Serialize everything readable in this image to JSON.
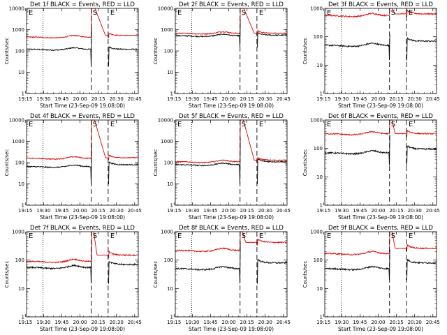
{
  "chart_data": [
    {
      "type": "line",
      "title": "Det 1f BLACK = Events, RED = LLD",
      "xlabel": "Start Time (23-Sep-09 19:08:00)",
      "ylabel": "Counts/sec",
      "x_ticks": [
        "19:15",
        "19:30",
        "19:45",
        "20:00",
        "20:15",
        "20:30",
        "20:45"
      ],
      "y_ticks": [
        "1",
        "10",
        "100",
        "1000",
        "10000"
      ],
      "y_scale": "log",
      "ylim": [
        1,
        10000
      ],
      "markers": [
        "E",
        "S",
        "E"
      ],
      "series": [
        {
          "name": "Events",
          "color": "#000000",
          "level": 120,
          "peak": 1200,
          "drop_low": 20,
          "post": 120
        },
        {
          "name": "LLD",
          "color": "#e00000",
          "level": 450,
          "peak": 14000,
          "drop_low": null,
          "post": 530
        }
      ]
    },
    {
      "type": "line",
      "title": "Det 2f BLACK = Events, RED = LLD",
      "xlabel": "Start Time (23-Sep-09 19:08:00)",
      "ylabel": "Counts/sec",
      "x_ticks": [
        "19:15",
        "19:30",
        "19:45",
        "20:00",
        "20:15",
        "20:30",
        "20:45"
      ],
      "y_ticks": [
        "1",
        "10",
        "100",
        "1000",
        "10000"
      ],
      "y_scale": "log",
      "ylim": [
        1,
        10000
      ],
      "markers": [
        "E",
        "S",
        "E"
      ],
      "series": [
        {
          "name": "Events",
          "color": "#000000",
          "level": 520,
          "peak": 3000,
          "drop_low": 150,
          "post": 550
        },
        {
          "name": "LLD",
          "color": "#e00000",
          "level": 680,
          "peak": 14000,
          "drop_low": null,
          "post": 680
        }
      ]
    },
    {
      "type": "line",
      "title": "Det 3f BLACK = Events, RED = LLD",
      "xlabel": "Start Time (23-Sep-09 19:08:00)",
      "ylabel": "Counts/sec",
      "x_ticks": [
        "19:15",
        "19:30",
        "19:45",
        "20:00",
        "20:15",
        "20:30",
        "20:45"
      ],
      "y_ticks": [
        "1",
        "10",
        "100",
        "1000"
      ],
      "y_scale": "log",
      "ylim": [
        1,
        1000
      ],
      "markers": [
        "E",
        "S",
        "E"
      ],
      "series": [
        {
          "name": "Events",
          "color": "#000000",
          "level": 50,
          "peak": 120,
          "drop_low": 15,
          "post": 70
        },
        {
          "name": "LLD",
          "color": "#e00000",
          "level": 560,
          "peak": 1000,
          "drop_low": null,
          "post": 640
        }
      ]
    },
    {
      "type": "line",
      "title": "Det 4f BLACK = Events, RED = LLD",
      "xlabel": "Start Time (23-Sep-09 19:08:00)",
      "ylabel": "Counts/sec",
      "x_ticks": [
        "19:15",
        "19:30",
        "19:45",
        "20:00",
        "20:15",
        "20:30",
        "20:45"
      ],
      "y_ticks": [
        "1",
        "10",
        "100",
        "1000",
        "10000"
      ],
      "y_scale": "log",
      "ylim": [
        1,
        10000
      ],
      "markers": [
        "E",
        "S",
        "E"
      ],
      "series": [
        {
          "name": "Events",
          "color": "#000000",
          "level": 65,
          "peak": 800,
          "drop_low": 10,
          "post": 80
        },
        {
          "name": "LLD",
          "color": "#e00000",
          "level": 160,
          "peak": 14000,
          "drop_low": null,
          "post": 170
        }
      ]
    },
    {
      "type": "line",
      "title": "Det 5f BLACK = Events, RED = LLD",
      "xlabel": "Start Time (23-Sep-09 19:08:00)",
      "ylabel": "Counts/sec",
      "x_ticks": [
        "19:15",
        "19:30",
        "19:45",
        "20:00",
        "20:15",
        "20:30",
        "20:45"
      ],
      "y_ticks": [
        "1",
        "10",
        "100",
        "1000",
        "10000"
      ],
      "y_scale": "log",
      "ylim": [
        1,
        10000
      ],
      "markers": [
        "E",
        "S",
        "E"
      ],
      "series": [
        {
          "name": "Events",
          "color": "#000000",
          "level": 80,
          "peak": 1500,
          "drop_low": 10,
          "post": 110
        },
        {
          "name": "LLD",
          "color": "#e00000",
          "level": 110,
          "peak": 14000,
          "drop_low": null,
          "post": 130
        }
      ]
    },
    {
      "type": "line",
      "title": "Det 6f BLACK = Events, RED = LLD",
      "xlabel": "Start Time (23-Sep-09 19:08:00)",
      "ylabel": "Counts/sec",
      "x_ticks": [
        "19:15",
        "19:30",
        "19:45",
        "20:00",
        "20:15",
        "20:30",
        "20:45"
      ],
      "y_ticks": [
        "1",
        "10",
        "100",
        "1000"
      ],
      "y_scale": "log",
      "ylim": [
        1,
        1000
      ],
      "markers": [
        "E",
        "S",
        "E"
      ],
      "series": [
        {
          "name": "Events",
          "color": "#000000",
          "level": 70,
          "peak": 300,
          "drop_low": 25,
          "post": 95
        },
        {
          "name": "LLD",
          "color": "#e00000",
          "level": 330,
          "peak": 1000,
          "drop_low": null,
          "post": 330
        }
      ]
    },
    {
      "type": "line",
      "title": "Det 7f BLACK = Events, RED = LLD",
      "xlabel": "Start Time (23-Sep-09 19:08:00)",
      "ylabel": "Counts/sec",
      "x_ticks": [
        "19:15",
        "19:30",
        "19:45",
        "20:00",
        "20:15",
        "20:30",
        "20:45"
      ],
      "y_ticks": [
        "1",
        "10",
        "100",
        "1000"
      ],
      "y_scale": "log",
      "ylim": [
        1,
        1000
      ],
      "markers": [
        "E",
        "S",
        "E"
      ],
      "series": [
        {
          "name": "Events",
          "color": "#000000",
          "level": 55,
          "peak": 500,
          "drop_low": 15,
          "post": 70
        },
        {
          "name": "LLD",
          "color": "#e00000",
          "level": 90,
          "peak": 1000,
          "drop_low": null,
          "post": 150
        }
      ]
    },
    {
      "type": "line",
      "title": "Det 8f BLACK = Events, RED = LLD",
      "xlabel": "Start Time (23-Sep-09 19:08:00)",
      "ylabel": "Counts/sec",
      "x_ticks": [
        "19:15",
        "19:30",
        "19:45",
        "20:00",
        "20:15",
        "20:30",
        "20:45"
      ],
      "y_ticks": [
        "1",
        "10",
        "100",
        "1000"
      ],
      "y_scale": "log",
      "ylim": [
        1,
        1000
      ],
      "markers": [
        "E",
        "S",
        "E"
      ],
      "series": [
        {
          "name": "Events",
          "color": "#000000",
          "level": 50,
          "peak": 450,
          "drop_low": 15,
          "post": 80
        },
        {
          "name": "LLD",
          "color": "#e00000",
          "level": 220,
          "peak": 1000,
          "drop_low": null,
          "post": 420
        }
      ]
    },
    {
      "type": "line",
      "title": "Det 9f BLACK = Events, RED = LLD",
      "xlabel": "Start Time (23-Sep-09 19:08:00)",
      "ylabel": "Counts/sec",
      "x_ticks": [
        "19:15",
        "19:30",
        "19:45",
        "20:00",
        "20:15",
        "20:30",
        "20:45"
      ],
      "y_ticks": [
        "1",
        "10",
        "100",
        "1000"
      ],
      "y_scale": "log",
      "ylim": [
        1,
        1000
      ],
      "markers": [
        "E",
        "S",
        "E"
      ],
      "series": [
        {
          "name": "Events",
          "color": "#000000",
          "level": 50,
          "peak": 230,
          "drop_low": 20,
          "post": 80
        },
        {
          "name": "LLD",
          "color": "#e00000",
          "level": 170,
          "peak": 1000,
          "drop_low": null,
          "post": 260
        }
      ]
    }
  ]
}
